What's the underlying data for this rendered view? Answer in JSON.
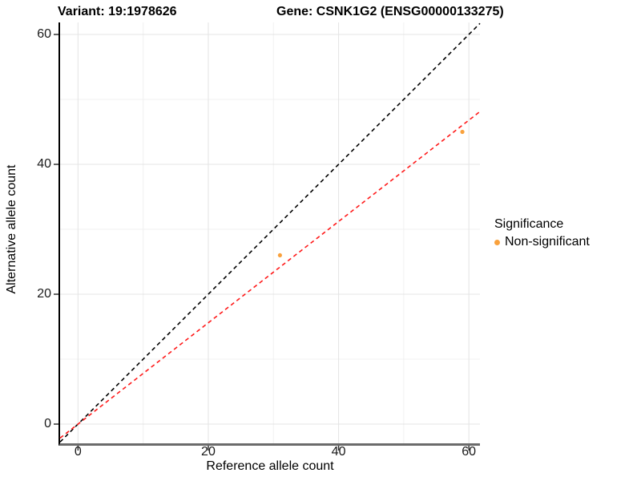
{
  "chart_data": {
    "type": "scatter",
    "title_left": "Variant: 19:1978626",
    "title_right": "Gene: CSNK1G2 (ENSG00000133275)",
    "xlabel": "Reference allele count",
    "ylabel": "Alternative allele count",
    "xlim": [
      -2.75,
      61.7
    ],
    "ylim": [
      -2.96,
      61.85
    ],
    "x_ticks": [
      0,
      20,
      40,
      60
    ],
    "y_ticks": [
      0,
      20,
      40,
      60
    ],
    "x_minor_ticks": [
      10,
      30,
      50
    ],
    "y_minor_ticks": [
      10,
      30,
      50
    ],
    "grid": true,
    "points": [
      {
        "x": 31,
        "y": 26,
        "series": "Non-significant"
      },
      {
        "x": 59,
        "y": 45,
        "series": "Non-significant"
      }
    ],
    "lines": [
      {
        "name": "identity",
        "slope": 1,
        "intercept": 0,
        "color": "#000000",
        "style": "dashed"
      },
      {
        "name": "fit",
        "slope": 0.78,
        "intercept": 0,
        "color": "#FF1A1A",
        "style": "dashed"
      }
    ],
    "legend": {
      "title": "Significance",
      "position": "right",
      "entries": [
        {
          "label": "Non-significant",
          "color": "#F9A13C"
        }
      ]
    },
    "colors": {
      "point": "#F9A13C",
      "grid_major": "#E4E4E4",
      "grid_minor": "#F0F0F0",
      "axis": "#333333",
      "tick": "#333333"
    }
  }
}
